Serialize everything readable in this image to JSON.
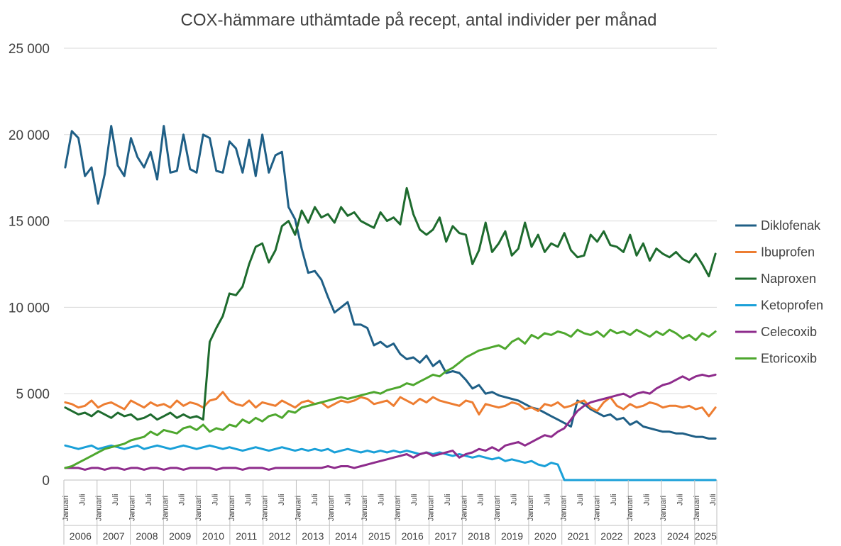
{
  "chart_data": {
    "type": "line",
    "title": "COX-hämmare uthämtade på recept, antal individer per månad",
    "xlabel": "",
    "ylabel": "",
    "ylim": [
      0,
      25000
    ],
    "y_ticks": [
      {
        "value": 0,
        "label": "0"
      },
      {
        "value": 5000,
        "label": "5 000"
      },
      {
        "value": 10000,
        "label": "10 000"
      },
      {
        "value": 15000,
        "label": "15 000"
      },
      {
        "value": 20000,
        "label": "20 000"
      },
      {
        "value": 25000,
        "label": "25 000"
      }
    ],
    "month_tick_labels": [
      "Januari",
      "Juli"
    ],
    "years": [
      "2006",
      "2007",
      "2008",
      "2009",
      "2010",
      "2011",
      "2012",
      "2013",
      "2014",
      "2015",
      "2016",
      "2017",
      "2018",
      "2019",
      "2020",
      "2021",
      "2022",
      "2023",
      "2024",
      "2025"
    ],
    "months_in_last_year": 8,
    "grid": true,
    "legend": "right",
    "series": [
      {
        "name": "Diklofenak",
        "color": "#1f5f86",
        "values": [
          18100,
          20200,
          19800,
          17600,
          18100,
          16000,
          17700,
          20500,
          18200,
          17600,
          19800,
          18700,
          18100,
          19000,
          17400,
          20500,
          17800,
          17900,
          20000,
          18000,
          17800,
          20000,
          19800,
          17900,
          17800,
          19600,
          19200,
          17800,
          19700,
          17600,
          20000,
          17800,
          18800,
          19000,
          15800,
          15100,
          13400,
          12000,
          12100,
          11600,
          10600,
          9700,
          10000,
          10300,
          9000,
          9000,
          8800,
          7800,
          8000,
          7700,
          7900,
          7300,
          7000,
          7100,
          6800,
          7200,
          6600,
          6900,
          6200,
          6300,
          6200,
          5800,
          5300,
          5500,
          5000,
          5100,
          4900,
          4800,
          4700,
          4600,
          4400,
          4200,
          4100,
          3900,
          3700,
          3500,
          3300,
          3100,
          4600,
          4400,
          4100,
          3900,
          3700,
          3800,
          3500,
          3600,
          3200,
          3400,
          3100,
          3000,
          2900,
          2800,
          2800,
          2700,
          2700,
          2600,
          2500,
          2500,
          2400,
          2400
        ]
      },
      {
        "name": "Ibuprofen",
        "color": "#ed7d31",
        "values": [
          4500,
          4400,
          4200,
          4300,
          4600,
          4200,
          4400,
          4500,
          4300,
          4100,
          4600,
          4400,
          4200,
          4500,
          4300,
          4400,
          4200,
          4600,
          4300,
          4500,
          4400,
          4200,
          4600,
          4700,
          5100,
          4600,
          4400,
          4300,
          4600,
          4200,
          4500,
          4400,
          4300,
          4600,
          4400,
          4200,
          4500,
          4600,
          4400,
          4500,
          4200,
          4400,
          4600,
          4500,
          4600,
          4800,
          4700,
          4400,
          4500,
          4600,
          4300,
          4800,
          4600,
          4400,
          4700,
          4500,
          4800,
          4600,
          4500,
          4400,
          4300,
          4600,
          4500,
          3800,
          4400,
          4300,
          4200,
          4300,
          4500,
          4400,
          4100,
          4200,
          4000,
          4400,
          4300,
          4500,
          4200,
          4300,
          4500,
          4600,
          4200,
          4000,
          4500,
          4800,
          4300,
          4100,
          4400,
          4200,
          4300,
          4500,
          4400,
          4200,
          4300,
          4300,
          4200,
          4300,
          4100,
          4200,
          3700,
          4200
        ]
      },
      {
        "name": "Naproxen",
        "color": "#1e6b2e",
        "values": [
          4200,
          4000,
          3800,
          3900,
          3700,
          4000,
          3800,
          3600,
          3900,
          3700,
          3800,
          3500,
          3600,
          3800,
          3500,
          3700,
          3900,
          3600,
          3800,
          3600,
          3700,
          3500,
          8000,
          8800,
          9500,
          10800,
          10700,
          11200,
          12500,
          13500,
          13700,
          12600,
          13300,
          14700,
          15000,
          14200,
          15600,
          14900,
          15800,
          15200,
          15400,
          14900,
          15800,
          15300,
          15500,
          15000,
          14800,
          14600,
          15500,
          15000,
          15200,
          14800,
          16900,
          15400,
          14500,
          14200,
          14500,
          15200,
          13800,
          14700,
          14300,
          14200,
          12500,
          13300,
          14900,
          13200,
          13700,
          14400,
          13000,
          13400,
          14900,
          13500,
          14200,
          13200,
          13700,
          13500,
          14300,
          13300,
          12900,
          13000,
          14200,
          13800,
          14400,
          13600,
          13500,
          13200,
          14200,
          13000,
          13700,
          12700,
          13400,
          13100,
          12900,
          13200,
          12800,
          12600,
          13100,
          12500,
          11800,
          13100
        ]
      },
      {
        "name": "Ketoprofen",
        "color": "#1aa0d8",
        "values": [
          2000,
          1900,
          1800,
          1900,
          2000,
          1800,
          1900,
          2000,
          1900,
          1800,
          1900,
          2000,
          1800,
          1900,
          2000,
          1900,
          1800,
          1900,
          2000,
          1900,
          1800,
          1900,
          2000,
          1900,
          1800,
          1900,
          1800,
          1700,
          1800,
          1900,
          1800,
          1700,
          1800,
          1900,
          1800,
          1700,
          1800,
          1700,
          1800,
          1700,
          1800,
          1600,
          1700,
          1800,
          1700,
          1600,
          1700,
          1600,
          1700,
          1600,
          1700,
          1600,
          1700,
          1600,
          1500,
          1600,
          1500,
          1600,
          1500,
          1400,
          1500,
          1400,
          1300,
          1400,
          1300,
          1200,
          1300,
          1100,
          1200,
          1100,
          1000,
          1100,
          900,
          800,
          1000,
          900,
          0,
          0,
          0,
          0,
          0,
          0,
          0,
          0,
          0,
          0,
          0,
          0,
          0,
          0,
          0,
          0,
          0,
          0,
          0,
          0,
          0,
          0,
          0,
          0
        ]
      },
      {
        "name": "Celecoxib",
        "color": "#8e2c8c",
        "values": [
          700,
          700,
          700,
          600,
          700,
          700,
          600,
          700,
          700,
          600,
          700,
          700,
          600,
          700,
          700,
          600,
          700,
          700,
          600,
          700,
          700,
          700,
          700,
          600,
          700,
          700,
          700,
          600,
          700,
          700,
          700,
          600,
          700,
          700,
          700,
          700,
          700,
          700,
          700,
          700,
          800,
          700,
          800,
          800,
          700,
          800,
          900,
          1000,
          1100,
          1200,
          1300,
          1400,
          1500,
          1300,
          1500,
          1600,
          1400,
          1500,
          1600,
          1700,
          1300,
          1500,
          1600,
          1800,
          1700,
          1900,
          1700,
          2000,
          2100,
          2200,
          2000,
          2200,
          2400,
          2600,
          2500,
          2800,
          3000,
          3500,
          4000,
          4300,
          4500,
          4600,
          4700,
          4800,
          4900,
          5000,
          4800,
          5000,
          5100,
          5000,
          5300,
          5500,
          5600,
          5800,
          6000,
          5800,
          6000,
          6100,
          6000,
          6100
        ]
      },
      {
        "name": "Etoricoxib",
        "color": "#4ea72e",
        "values": [
          700,
          800,
          1000,
          1200,
          1400,
          1600,
          1800,
          1900,
          2000,
          2100,
          2300,
          2400,
          2500,
          2800,
          2600,
          2900,
          2800,
          2700,
          3000,
          3100,
          2900,
          3200,
          2800,
          3000,
          2900,
          3200,
          3100,
          3500,
          3300,
          3600,
          3400,
          3700,
          3800,
          3600,
          4000,
          3900,
          4200,
          4300,
          4400,
          4500,
          4600,
          4700,
          4800,
          4700,
          4800,
          4900,
          5000,
          5100,
          5000,
          5200,
          5300,
          5400,
          5600,
          5500,
          5700,
          5900,
          6100,
          6000,
          6300,
          6500,
          6800,
          7100,
          7300,
          7500,
          7600,
          7700,
          7800,
          7600,
          8000,
          8200,
          7900,
          8400,
          8200,
          8500,
          8400,
          8600,
          8500,
          8300,
          8700,
          8500,
          8400,
          8600,
          8300,
          8700,
          8500,
          8600,
          8400,
          8700,
          8500,
          8300,
          8600,
          8400,
          8700,
          8500,
          8200,
          8400,
          8100,
          8500,
          8300,
          8600
        ]
      }
    ]
  }
}
